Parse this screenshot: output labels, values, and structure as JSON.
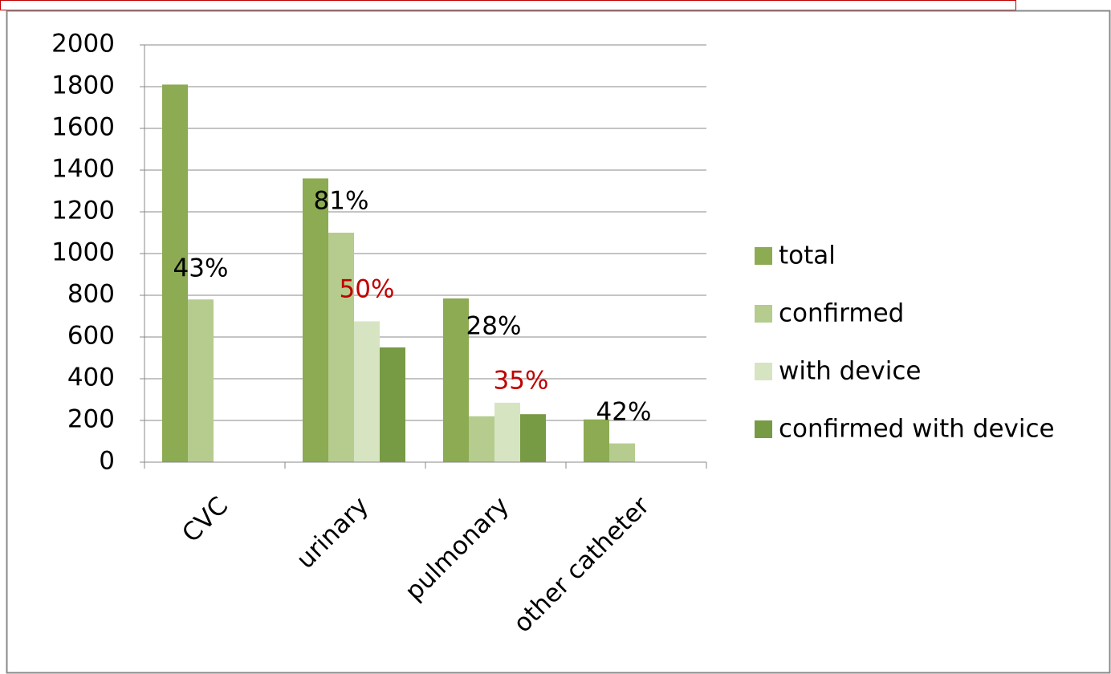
{
  "chart_data": {
    "type": "bar",
    "categories": [
      "CVC",
      "urinary",
      "pulmonary",
      "other catheter"
    ],
    "series": [
      {
        "name": "total",
        "color": "#8cab52",
        "values": [
          1810,
          1360,
          785,
          205
        ]
      },
      {
        "name": "confirmed",
        "color": "#b5cc8e",
        "values": [
          780,
          1100,
          220,
          90
        ]
      },
      {
        "name": "with device",
        "color": "#d7e4c2",
        "values": [
          null,
          675,
          285,
          null
        ]
      },
      {
        "name": "confirmed with device",
        "color": "#779a44",
        "values": [
          null,
          550,
          230,
          null
        ]
      }
    ],
    "ylim": [
      0,
      2000
    ],
    "yticks": [
      0,
      200,
      400,
      600,
      800,
      1000,
      1200,
      1400,
      1600,
      1800,
      2000
    ],
    "grid": true,
    "legend": "right",
    "annotations": [
      {
        "text": "43%",
        "color": "#000000"
      },
      {
        "text": "81%",
        "color": "#000000"
      },
      {
        "text": "50%",
        "color": "#c00000"
      },
      {
        "text": "28%",
        "color": "#000000"
      },
      {
        "text": "35%",
        "color": "#c00000"
      },
      {
        "text": "42%",
        "color": "#000000"
      }
    ]
  }
}
